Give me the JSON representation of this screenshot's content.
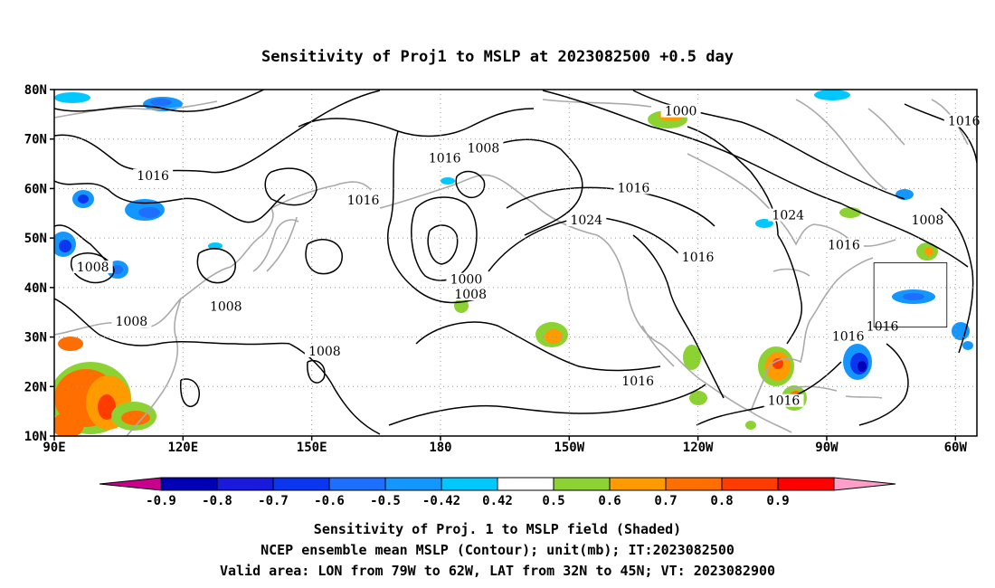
{
  "title": "Sensitivity of Proj1 to MSLP at 2023082500 +0.5 day",
  "map": {
    "lon_range": [
      90,
      305
    ],
    "lat_range": [
      10,
      80
    ],
    "lat_ticks": [
      {
        "value": 80,
        "label": "80N"
      },
      {
        "value": 70,
        "label": "70N"
      },
      {
        "value": 60,
        "label": "60N"
      },
      {
        "value": 50,
        "label": "50N"
      },
      {
        "value": 40,
        "label": "40N"
      },
      {
        "value": 30,
        "label": "30N"
      },
      {
        "value": 20,
        "label": "20N"
      },
      {
        "value": 10,
        "label": "10N"
      }
    ],
    "lon_ticks": [
      {
        "value": 90,
        "label": "90E"
      },
      {
        "value": 120,
        "label": "120E"
      },
      {
        "value": 150,
        "label": "150E"
      },
      {
        "value": 180,
        "label": "180"
      },
      {
        "value": 210,
        "label": "150W"
      },
      {
        "value": 240,
        "label": "120W"
      },
      {
        "value": 270,
        "label": "90W"
      },
      {
        "value": 300,
        "label": "60W"
      }
    ],
    "grid": "dotted",
    "valid_area": {
      "lon_min": 281,
      "lon_max": 298,
      "lat_min": 32,
      "lat_max": 45
    },
    "contour_labels": [
      {
        "text": "1000",
        "lon": 236,
        "lat": 75.5
      },
      {
        "text": "1016",
        "lon": 302,
        "lat": 73.5
      },
      {
        "text": "1008",
        "lon": 190,
        "lat": 68
      },
      {
        "text": "1016",
        "lon": 181,
        "lat": 66
      },
      {
        "text": "1016",
        "lon": 113,
        "lat": 62.5
      },
      {
        "text": "1016",
        "lon": 162,
        "lat": 57.5
      },
      {
        "text": "1016",
        "lon": 225,
        "lat": 60
      },
      {
        "text": "1024",
        "lon": 214,
        "lat": 53.5
      },
      {
        "text": "1024",
        "lon": 261,
        "lat": 54.5
      },
      {
        "text": "1016",
        "lon": 274,
        "lat": 48.5
      },
      {
        "text": "1008",
        "lon": 293.5,
        "lat": 53.5
      },
      {
        "text": "1008",
        "lon": 99,
        "lat": 44
      },
      {
        "text": "1000",
        "lon": 186,
        "lat": 41.5
      },
      {
        "text": "1008",
        "lon": 187,
        "lat": 38.5
      },
      {
        "text": "1016",
        "lon": 240,
        "lat": 46
      },
      {
        "text": "1008",
        "lon": 130,
        "lat": 36
      },
      {
        "text": "1008",
        "lon": 108,
        "lat": 33
      },
      {
        "text": "1016",
        "lon": 275,
        "lat": 30
      },
      {
        "text": "1016",
        "lon": 283,
        "lat": 32
      },
      {
        "text": "1008",
        "lon": 153,
        "lat": 27
      },
      {
        "text": "1016",
        "lon": 226,
        "lat": 21
      },
      {
        "text": "1016",
        "lon": 260,
        "lat": 17
      }
    ]
  },
  "colorbar": {
    "levels": [
      "-0.9",
      "-0.8",
      "-0.7",
      "-0.6",
      "-0.5",
      "-0.42",
      "0.42",
      "0.5",
      "0.6",
      "0.7",
      "0.8",
      "0.9"
    ],
    "colors": [
      "#0000b4",
      "#1a1adc",
      "#0a36f0",
      "#1f6fff",
      "#1496ff",
      "#00c8ff",
      "#ffffff",
      "#8cd232",
      "#ff9b00",
      "#ff6e00",
      "#ff3c00",
      "#ff0000"
    ],
    "low_color": "#c8008c",
    "high_color": "#ff9ec8"
  },
  "footer": {
    "line1": "Sensitivity of Proj. 1 to MSLP field (Shaded)",
    "line2": "NCEP ensemble mean MSLP (Contour); unit(mb); IT:2023082500",
    "line3": "Valid area: LON from 79W to 62W, LAT from 32N to 45N; VT: 2023082900"
  }
}
